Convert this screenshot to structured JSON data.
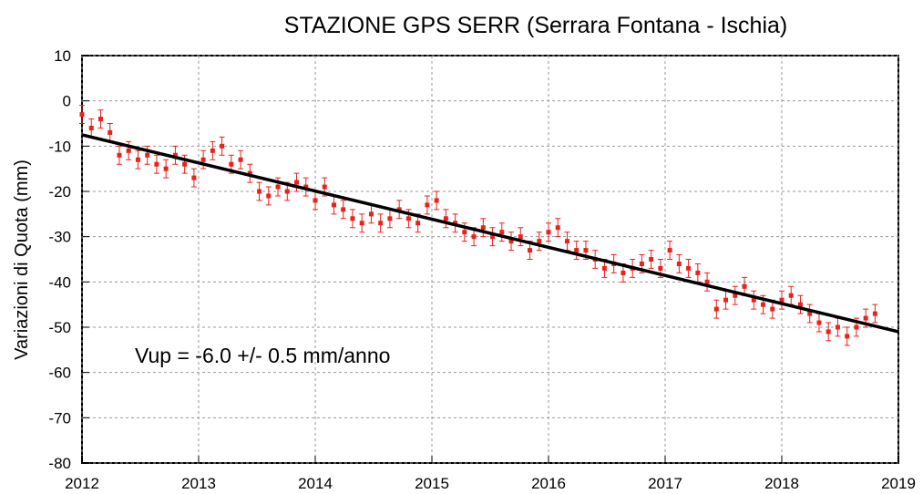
{
  "chart_data": {
    "type": "scatter",
    "title": "STAZIONE GPS SERR (Serrara Fontana - Ischia)",
    "y_label": "Variazioni di Quota (mm)",
    "annotation": "Vup = -6.0 +/- 0.5 mm/anno",
    "xlim": [
      2012,
      2019
    ],
    "xticks": [
      2012,
      2013,
      2014,
      2015,
      2016,
      2017,
      2018,
      2019
    ],
    "ylim": [
      -80,
      10
    ],
    "yticks": [
      10,
      0,
      -10,
      -20,
      -30,
      -40,
      -50,
      -60,
      -70,
      -80
    ],
    "grid": true,
    "series": [
      {
        "type": "scatter",
        "color": "#e8221c",
        "x": [
          2012.0,
          2012.08,
          2012.16,
          2012.24,
          2012.32,
          2012.4,
          2012.48,
          2012.56,
          2012.64,
          2012.72,
          2012.8,
          2012.88,
          2012.96,
          2013.04,
          2013.12,
          2013.2,
          2013.28,
          2013.36,
          2013.44,
          2013.52,
          2013.6,
          2013.68,
          2013.76,
          2013.84,
          2013.92,
          2014.0,
          2014.08,
          2014.16,
          2014.24,
          2014.32,
          2014.4,
          2014.48,
          2014.56,
          2014.64,
          2014.72,
          2014.8,
          2014.88,
          2014.96,
          2015.04,
          2015.12,
          2015.2,
          2015.28,
          2015.36,
          2015.44,
          2015.52,
          2015.6,
          2015.68,
          2015.76,
          2015.84,
          2015.92,
          2016.0,
          2016.08,
          2016.16,
          2016.24,
          2016.32,
          2016.4,
          2016.48,
          2016.56,
          2016.64,
          2016.72,
          2016.8,
          2016.88,
          2016.96,
          2017.04,
          2017.12,
          2017.2,
          2017.28,
          2017.36,
          2017.44,
          2017.52,
          2017.6,
          2017.68,
          2017.76,
          2017.84,
          2017.92,
          2018.0,
          2018.08,
          2018.16,
          2018.24,
          2018.32,
          2018.4,
          2018.48,
          2018.56,
          2018.64,
          2018.72,
          2018.8
        ],
        "values": [
          -3,
          -6,
          -4,
          -7,
          -12,
          -11,
          -13,
          -12,
          -14,
          -15,
          -12,
          -14,
          -17,
          -13,
          -11,
          -10,
          -14,
          -13,
          -16,
          -20,
          -21,
          -19,
          -20,
          -18,
          -19,
          -22,
          -19,
          -23,
          -24,
          -26,
          -27,
          -25,
          -27,
          -26,
          -24,
          -26,
          -27,
          -23,
          -22,
          -26,
          -27,
          -29,
          -30,
          -28,
          -30,
          -29,
          -31,
          -30,
          -33,
          -31,
          -29,
          -28,
          -31,
          -33,
          -33,
          -35,
          -37,
          -36,
          -38,
          -37,
          -36,
          -35,
          -37,
          -33,
          -36,
          -37,
          -38,
          -40,
          -46,
          -44,
          -43,
          -41,
          -44,
          -45,
          -46,
          -44,
          -43,
          -45,
          -47,
          -49,
          -51,
          -50,
          -52,
          -50,
          -48,
          -47
        ],
        "errors": [
          2,
          2,
          2,
          2,
          2,
          2,
          2,
          2,
          2,
          2,
          2,
          2,
          2,
          2,
          2,
          2,
          2,
          2,
          2,
          2,
          2,
          2,
          2,
          2,
          2,
          2,
          2,
          2,
          2,
          2,
          2,
          2,
          2,
          2,
          2,
          2,
          2,
          2,
          2,
          2,
          2,
          2,
          2,
          2,
          2,
          2,
          2,
          2,
          2,
          2,
          2,
          2,
          2,
          2,
          2,
          2,
          2,
          2,
          2,
          2,
          2,
          2,
          2,
          2,
          2,
          2,
          2,
          2,
          2,
          2,
          2,
          2,
          2,
          2,
          2,
          2,
          2,
          2,
          2,
          2,
          2,
          2,
          2,
          2,
          2,
          2
        ]
      },
      {
        "type": "line",
        "color": "#000000",
        "x": [
          2012,
          2019
        ],
        "values": [
          -7.5,
          -51
        ]
      }
    ]
  }
}
